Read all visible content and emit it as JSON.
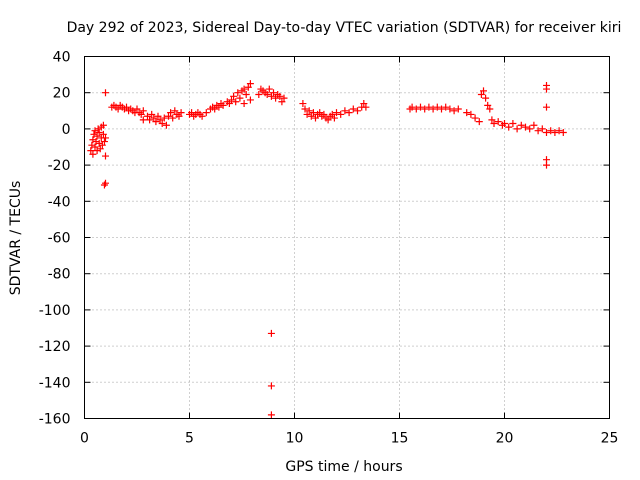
{
  "chart_data": {
    "type": "scatter",
    "title": "Day 292 of 2023, Sidereal Day-to-day VTEC variation (SDTVAR) for receiver kiri",
    "xlabel": "GPS time / hours",
    "ylabel": "SDTVAR / TECUs",
    "xlim": [
      0,
      25
    ],
    "ylim": [
      -160,
      40
    ],
    "xticks": [
      "0",
      "5",
      "10",
      "15",
      "20",
      "25"
    ],
    "yticks": [
      "40",
      "20",
      "0",
      "-20",
      "-40",
      "-60",
      "-80",
      "-100",
      "-120",
      "-140",
      "-160"
    ],
    "grid": true,
    "marker": "+",
    "color": "#ff0000",
    "series": [
      {
        "points": [
          [
            0.3,
            -12
          ],
          [
            0.35,
            -9
          ],
          [
            0.4,
            -6
          ],
          [
            0.4,
            -14
          ],
          [
            0.45,
            -3
          ],
          [
            0.5,
            -10
          ],
          [
            0.5,
            -1
          ],
          [
            0.55,
            -7
          ],
          [
            0.6,
            -12
          ],
          [
            0.6,
            -4
          ],
          [
            0.65,
            0
          ],
          [
            0.7,
            -8
          ],
          [
            0.7,
            -2
          ],
          [
            0.75,
            -11
          ],
          [
            0.8,
            -5
          ],
          [
            0.8,
            1
          ],
          [
            0.85,
            -9
          ],
          [
            0.9,
            -3
          ],
          [
            0.9,
            2
          ],
          [
            0.95,
            -7
          ],
          [
            1.0,
            -15
          ],
          [
            1.0,
            20
          ],
          [
            1.0,
            -5
          ],
          [
            0.95,
            -31
          ],
          [
            1.0,
            -30
          ],
          [
            1.3,
            12
          ],
          [
            1.4,
            13
          ],
          [
            1.5,
            12
          ],
          [
            1.6,
            11
          ],
          [
            1.7,
            13
          ],
          [
            1.8,
            12
          ],
          [
            1.9,
            11
          ],
          [
            2.0,
            12
          ],
          [
            2.1,
            10
          ],
          [
            2.2,
            11
          ],
          [
            2.3,
            10
          ],
          [
            2.4,
            9
          ],
          [
            2.5,
            11
          ],
          [
            2.6,
            9
          ],
          [
            2.7,
            8
          ],
          [
            2.8,
            10
          ],
          [
            2.8,
            5
          ],
          [
            3.0,
            7
          ],
          [
            3.1,
            5
          ],
          [
            3.2,
            8
          ],
          [
            3.3,
            6
          ],
          [
            3.4,
            4
          ],
          [
            3.5,
            7
          ],
          [
            3.6,
            5
          ],
          [
            3.7,
            3
          ],
          [
            3.8,
            6
          ],
          [
            3.9,
            2
          ],
          [
            4.0,
            7
          ],
          [
            4.1,
            9
          ],
          [
            4.2,
            6
          ],
          [
            4.3,
            10
          ],
          [
            4.4,
            8
          ],
          [
            4.5,
            7
          ],
          [
            4.6,
            9
          ],
          [
            5.0,
            8
          ],
          [
            5.1,
            9
          ],
          [
            5.2,
            7
          ],
          [
            5.3,
            8
          ],
          [
            5.4,
            9
          ],
          [
            5.5,
            8
          ],
          [
            5.6,
            7
          ],
          [
            5.8,
            9
          ],
          [
            6.0,
            11
          ],
          [
            6.1,
            12
          ],
          [
            6.2,
            11
          ],
          [
            6.3,
            13
          ],
          [
            6.4,
            12
          ],
          [
            6.5,
            14
          ],
          [
            6.6,
            13
          ],
          [
            6.8,
            15
          ],
          [
            6.9,
            14
          ],
          [
            7.0,
            16
          ],
          [
            7.1,
            18
          ],
          [
            7.2,
            15
          ],
          [
            7.3,
            20
          ],
          [
            7.4,
            17
          ],
          [
            7.5,
            21
          ],
          [
            7.6,
            14
          ],
          [
            7.6,
            22
          ],
          [
            7.7,
            19
          ],
          [
            7.8,
            23
          ],
          [
            7.9,
            25
          ],
          [
            7.9,
            16
          ],
          [
            8.3,
            19
          ],
          [
            8.4,
            22
          ],
          [
            8.5,
            21
          ],
          [
            8.6,
            20
          ],
          [
            8.7,
            19
          ],
          [
            8.8,
            22
          ],
          [
            8.9,
            18
          ],
          [
            9.0,
            20
          ],
          [
            9.1,
            17
          ],
          [
            9.2,
            19
          ],
          [
            9.3,
            18
          ],
          [
            9.4,
            15
          ],
          [
            9.5,
            17
          ],
          [
            8.9,
            -113
          ],
          [
            8.9,
            -142
          ],
          [
            8.9,
            -158
          ],
          [
            10.4,
            14
          ],
          [
            10.5,
            11
          ],
          [
            10.6,
            8
          ],
          [
            10.7,
            10
          ],
          [
            10.8,
            7
          ],
          [
            10.9,
            9
          ],
          [
            11.0,
            6
          ],
          [
            11.1,
            8
          ],
          [
            11.2,
            9
          ],
          [
            11.3,
            7
          ],
          [
            11.4,
            8
          ],
          [
            11.5,
            6
          ],
          [
            11.6,
            5
          ],
          [
            11.7,
            7
          ],
          [
            11.8,
            8
          ],
          [
            11.9,
            6
          ],
          [
            12.0,
            9
          ],
          [
            12.2,
            8
          ],
          [
            12.4,
            10
          ],
          [
            12.6,
            9
          ],
          [
            12.8,
            11
          ],
          [
            13.0,
            10
          ],
          [
            13.2,
            12
          ],
          [
            13.3,
            14
          ],
          [
            13.4,
            12
          ],
          [
            15.5,
            11
          ],
          [
            15.6,
            12
          ],
          [
            15.8,
            11
          ],
          [
            16.0,
            12
          ],
          [
            16.2,
            11
          ],
          [
            16.4,
            12
          ],
          [
            16.6,
            11
          ],
          [
            16.8,
            12
          ],
          [
            17.0,
            11
          ],
          [
            17.2,
            12
          ],
          [
            17.4,
            11
          ],
          [
            17.6,
            10
          ],
          [
            17.8,
            11
          ],
          [
            18.2,
            9
          ],
          [
            18.4,
            8
          ],
          [
            18.6,
            6
          ],
          [
            18.8,
            4
          ],
          [
            18.9,
            19
          ],
          [
            19.0,
            21
          ],
          [
            19.1,
            17
          ],
          [
            19.2,
            13
          ],
          [
            19.3,
            11
          ],
          [
            19.4,
            5
          ],
          [
            19.5,
            3
          ],
          [
            19.7,
            4
          ],
          [
            19.9,
            2
          ],
          [
            20.0,
            3
          ],
          [
            20.2,
            1
          ],
          [
            20.4,
            3
          ],
          [
            20.6,
            0
          ],
          [
            20.8,
            2
          ],
          [
            21.0,
            1
          ],
          [
            21.2,
            0
          ],
          [
            21.4,
            2
          ],
          [
            21.6,
            -1
          ],
          [
            21.8,
            0
          ],
          [
            22.0,
            -2
          ],
          [
            22.2,
            -1
          ],
          [
            22.4,
            -2
          ],
          [
            22.6,
            -1
          ],
          [
            22.8,
            -2
          ],
          [
            22.0,
            24
          ],
          [
            22.0,
            22
          ],
          [
            22.0,
            12
          ],
          [
            22.0,
            -17
          ],
          [
            22.0,
            -20
          ]
        ]
      }
    ]
  }
}
